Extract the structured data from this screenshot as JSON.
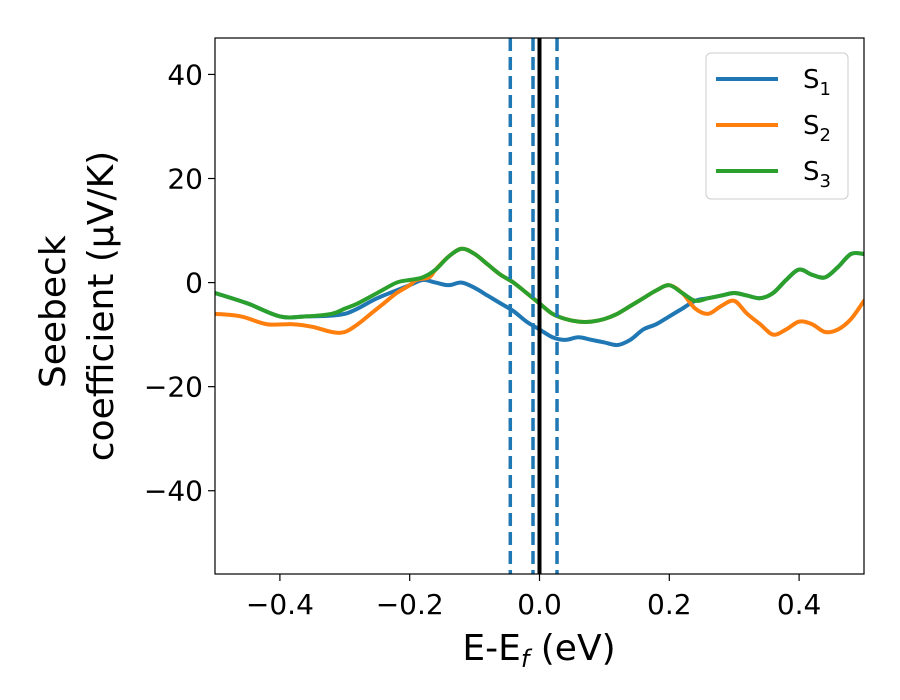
{
  "chart_data": {
    "type": "line",
    "xlabel": "E-E",
    "xlabel_sub": "f",
    "xlabel_unit": " (eV)",
    "ylabel_line1": "Seebeck",
    "ylabel_line2": "coefficient  (μV/K)",
    "xlim": [
      -0.5,
      0.5
    ],
    "ylim": [
      -56,
      47
    ],
    "x_ticks": [
      -0.4,
      -0.2,
      0.0,
      0.2,
      0.4
    ],
    "x_tick_labels": [
      "−0.4",
      "−0.2",
      "0.0",
      "0.2",
      "0.4"
    ],
    "y_ticks": [
      40,
      20,
      0,
      -20,
      -40
    ],
    "y_tick_labels": [
      "40",
      "20",
      "0",
      "−20",
      "−40"
    ],
    "grid": false,
    "legend_position": "top-right",
    "series": [
      {
        "name": "S",
        "name_sub": "1",
        "color": "#1f77b4",
        "x": [
          -0.5,
          -0.45,
          -0.4,
          -0.36,
          -0.3,
          -0.25,
          -0.2,
          -0.18,
          -0.16,
          -0.14,
          -0.12,
          -0.1,
          -0.08,
          -0.06,
          -0.04,
          -0.02,
          0.0,
          0.02,
          0.04,
          0.06,
          0.08,
          0.1,
          0.12,
          0.14,
          0.16,
          0.18,
          0.2,
          0.22,
          0.24,
          0.26,
          0.28,
          0.3,
          0.32,
          0.34,
          0.36,
          0.38,
          0.4,
          0.42,
          0.44,
          0.46,
          0.48,
          0.5
        ],
        "y": [
          -2,
          -4,
          -6.5,
          -6.5,
          -6,
          -3,
          -0.5,
          0.5,
          0,
          -0.5,
          0,
          -1,
          -2.5,
          -4,
          -5.5,
          -7.5,
          -9,
          -10.5,
          -11,
          -10.5,
          -11,
          -11.5,
          -12,
          -11,
          -9,
          -8,
          -6.5,
          -5,
          -3.5,
          -3,
          -2.5,
          -2,
          -2.5,
          -3,
          -2,
          0.5,
          2.5,
          1.5,
          1,
          3,
          5.5,
          5.5
        ]
      },
      {
        "name": "S",
        "name_sub": "2",
        "color": "#ff7f0e",
        "x": [
          -0.5,
          -0.46,
          -0.42,
          -0.38,
          -0.35,
          -0.32,
          -0.3,
          -0.28,
          -0.26,
          -0.24,
          -0.22,
          -0.2,
          -0.19,
          -0.17,
          -0.16,
          -0.14,
          -0.12,
          -0.1,
          -0.08,
          -0.06,
          -0.04,
          -0.02,
          0.0,
          0.02,
          0.04,
          0.06,
          0.08,
          0.1,
          0.12,
          0.14,
          0.16,
          0.18,
          0.2,
          0.22,
          0.24,
          0.26,
          0.28,
          0.3,
          0.32,
          0.34,
          0.36,
          0.38,
          0.4,
          0.42,
          0.44,
          0.46,
          0.48,
          0.5
        ],
        "y": [
          -6,
          -6.5,
          -8,
          -8,
          -8.5,
          -9.5,
          -9.5,
          -8,
          -6,
          -4,
          -2,
          -0.5,
          0.5,
          1,
          2.5,
          5,
          6.5,
          5.5,
          3.5,
          1.5,
          0,
          -2,
          -4,
          -6,
          -7,
          -7.5,
          -7.5,
          -7,
          -6,
          -4.5,
          -3,
          -1.5,
          -0.5,
          -2,
          -5,
          -6,
          -4.5,
          -3.5,
          -6,
          -8,
          -10,
          -9,
          -7.5,
          -8,
          -9.5,
          -9,
          -7,
          -3.5
        ]
      },
      {
        "name": "S",
        "name_sub": "3",
        "color": "#2ca02c",
        "x": [
          -0.5,
          -0.45,
          -0.4,
          -0.36,
          -0.32,
          -0.3,
          -0.28,
          -0.25,
          -0.22,
          -0.2,
          -0.18,
          -0.16,
          -0.14,
          -0.12,
          -0.1,
          -0.08,
          -0.06,
          -0.04,
          -0.02,
          0.0,
          0.02,
          0.04,
          0.06,
          0.08,
          0.1,
          0.12,
          0.14,
          0.16,
          0.18,
          0.2,
          0.22,
          0.24,
          0.26,
          0.28,
          0.3,
          0.32,
          0.34,
          0.36,
          0.38,
          0.4,
          0.42,
          0.44,
          0.46,
          0.48,
          0.5
        ],
        "y": [
          -2,
          -4,
          -6.5,
          -6.5,
          -6,
          -5,
          -4,
          -2,
          0,
          0.5,
          1,
          2.5,
          5,
          6.5,
          5.5,
          3.5,
          1.5,
          0,
          -2,
          -4,
          -6,
          -7,
          -7.5,
          -7.5,
          -7,
          -6,
          -4.5,
          -3,
          -1.5,
          -0.5,
          -2,
          -3.5,
          -3,
          -2.5,
          -2,
          -2.5,
          -3,
          -2,
          0.5,
          2.5,
          1.5,
          1,
          3,
          5.5,
          5.5
        ]
      }
    ],
    "vertical_lines": [
      {
        "x": -0.045,
        "style": "dashed",
        "color": "#1f77b4"
      },
      {
        "x": -0.01,
        "style": "dashed",
        "color": "#1f77b4"
      },
      {
        "x": 0.027,
        "style": "dashed",
        "color": "#1f77b4"
      },
      {
        "x": 0.0,
        "style": "solid",
        "color": "#000000"
      }
    ]
  }
}
